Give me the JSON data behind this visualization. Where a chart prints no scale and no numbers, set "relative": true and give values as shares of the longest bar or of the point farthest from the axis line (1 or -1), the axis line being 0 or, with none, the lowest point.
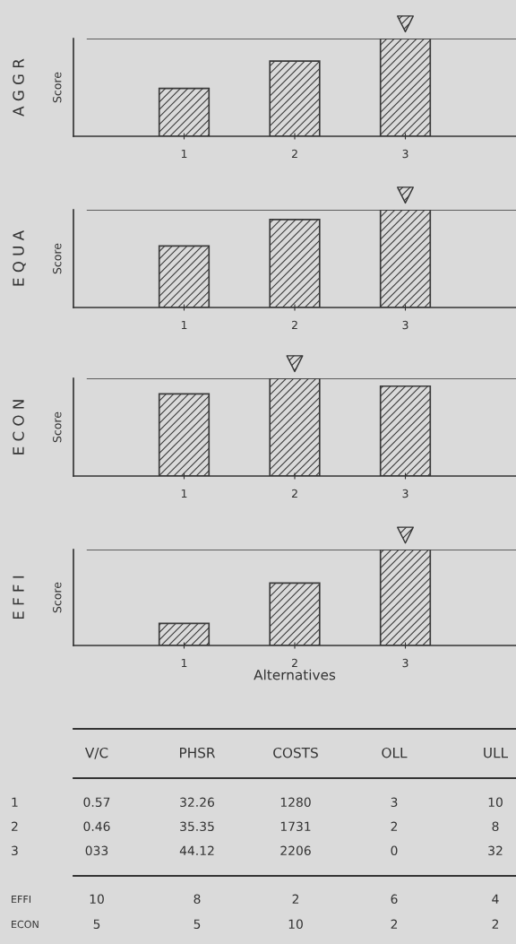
{
  "chart_data": [
    {
      "type": "bar",
      "title": "A G G R",
      "ylabel": "Score",
      "categories": [
        "1",
        "2",
        "3"
      ],
      "values": [
        0.49,
        0.77,
        1
      ],
      "relative": true,
      "color": "#3a3a3a",
      "ref_lines": [
        {
          "axis": "y",
          "value": 1
        }
      ]
    },
    {
      "type": "bar",
      "title": "E Q U A",
      "ylabel": "Score",
      "categories": [
        "1",
        "2",
        "3"
      ],
      "values": [
        0.63,
        0.9,
        1
      ],
      "relative": true,
      "color": "#3a3a3a",
      "ref_lines": [
        {
          "axis": "y",
          "value": 1
        }
      ]
    },
    {
      "type": "bar",
      "title": "E C O N",
      "ylabel": "Score",
      "categories": [
        "1",
        "2",
        "3"
      ],
      "values": [
        0.84,
        1,
        0.92
      ],
      "relative": true,
      "color": "#3a3a3a",
      "ref_lines": [
        {
          "axis": "y",
          "value": 1
        }
      ]
    },
    {
      "type": "bar",
      "title": "E F F I",
      "ylabel": "Score",
      "xlabel": "Alternatives",
      "categories": [
        "1",
        "2",
        "3"
      ],
      "values": [
        0.23,
        0.65,
        1
      ],
      "relative": true,
      "color": "#3a3a3a",
      "ref_lines": [
        {
          "axis": "y",
          "value": 1
        }
      ]
    },
    {
      "type": "other",
      "categories": [
        "V/C",
        "PHSR",
        "COSTS",
        "OLL",
        "ULL"
      ],
      "y_categories": [
        "1",
        "2",
        "3",
        "EFFI",
        "ECON"
      ],
      "cell_labels": [
        [
          "0.57",
          "32.26",
          "1280",
          "3",
          "10"
        ],
        [
          "0.46",
          "35.35",
          "1731",
          "2",
          "8"
        ],
        [
          "033",
          "44.12",
          "2206",
          "0",
          "32"
        ],
        [
          "10",
          "8",
          "2",
          "6",
          "4"
        ],
        [
          "5",
          "5",
          "10",
          "2",
          "2"
        ]
      ]
    }
  ]
}
